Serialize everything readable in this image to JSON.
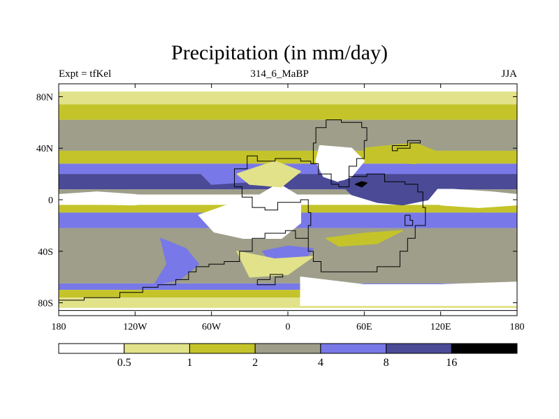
{
  "header": {
    "title": "Precipitation (in mm/day)",
    "left": "Expt = tfKel",
    "center": "314_6_MaBP",
    "right": "JJA"
  },
  "chart_data": {
    "type": "heatmap",
    "title": "Precipitation (in mm/day)",
    "subtitle_left": "Expt = tfKel",
    "subtitle_center": "314_6_MaBP",
    "subtitle_right": "JJA",
    "xlim": [
      -180,
      180
    ],
    "ylim": [
      -90,
      90
    ],
    "x_ticks": [
      {
        "value": -180,
        "label": "180"
      },
      {
        "value": -120,
        "label": "120W"
      },
      {
        "value": -60,
        "label": "60W"
      },
      {
        "value": 0,
        "label": "0"
      },
      {
        "value": 60,
        "label": "60E"
      },
      {
        "value": 120,
        "label": "120E"
      },
      {
        "value": 180,
        "label": "180"
      }
    ],
    "y_ticks": [
      {
        "value": 80,
        "label": "80N"
      },
      {
        "value": 40,
        "label": "40N"
      },
      {
        "value": 0,
        "label": "0"
      },
      {
        "value": -40,
        "label": "40S"
      },
      {
        "value": -80,
        "label": "80S"
      }
    ],
    "colorbar": {
      "levels": [
        "0.5",
        "1",
        "2",
        "4",
        "8",
        "16"
      ],
      "colors": [
        "#ffffff",
        "#e2e28a",
        "#c4c42a",
        "#9e9e8a",
        "#7878e8",
        "#4a4a96",
        "#000000"
      ]
    },
    "zonal_bands": [
      {
        "lat": [
          84,
          90
        ],
        "bin": 0
      },
      {
        "lat": [
          74,
          84
        ],
        "bin": 1
      },
      {
        "lat": [
          62,
          74
        ],
        "bin": 2
      },
      {
        "lat": [
          38,
          62
        ],
        "bin": 3
      },
      {
        "lat": [
          28,
          38
        ],
        "bin": 2
      },
      {
        "lat": [
          20,
          28
        ],
        "bin": 4
      },
      {
        "lat": [
          8,
          20
        ],
        "bin": 5
      },
      {
        "lat": [
          4,
          8
        ],
        "bin": 3
      },
      {
        "lat": [
          -4,
          4
        ],
        "bin": 0
      },
      {
        "lat": [
          -10,
          -4
        ],
        "bin": 2
      },
      {
        "lat": [
          -22,
          -10
        ],
        "bin": 4
      },
      {
        "lat": [
          -65,
          -22
        ],
        "bin": 3
      },
      {
        "lat": [
          -70,
          -65
        ],
        "bin": 4
      },
      {
        "lat": [
          -76,
          -70
        ],
        "bin": 2
      },
      {
        "lat": [
          -84,
          -76
        ],
        "bin": 1
      },
      {
        "lat": [
          -90,
          -84
        ],
        "bin": 0
      }
    ],
    "regions": [
      {
        "bin": 0,
        "polygon": [
          [
            -40,
            20
          ],
          [
            -10,
            28
          ],
          [
            -5,
            14
          ],
          [
            -25,
            2
          ],
          [
            -50,
            -5
          ],
          [
            -70,
            -12
          ],
          [
            -58,
            -25
          ],
          [
            -35,
            -30
          ],
          [
            -5,
            -30
          ],
          [
            10,
            -18
          ],
          [
            10,
            2
          ],
          [
            -10,
            14
          ],
          [
            -35,
            18
          ]
        ]
      },
      {
        "bin": 0,
        "polygon": [
          [
            25,
            42
          ],
          [
            50,
            40
          ],
          [
            60,
            30
          ],
          [
            50,
            18
          ],
          [
            40,
            14
          ],
          [
            28,
            18
          ],
          [
            22,
            30
          ]
        ]
      },
      {
        "bin": 0,
        "polygon": [
          [
            110,
            8
          ],
          [
            130,
            8
          ],
          [
            160,
            6
          ],
          [
            180,
            4
          ],
          [
            180,
            -4
          ],
          [
            150,
            -6
          ],
          [
            120,
            -4
          ]
        ]
      },
      {
        "bin": 0,
        "polygon": [
          [
            -180,
            4
          ],
          [
            -150,
            6
          ],
          [
            -120,
            4
          ],
          [
            -100,
            0
          ],
          [
            -120,
            -4
          ],
          [
            -180,
            -3
          ]
        ]
      },
      {
        "bin": 0,
        "polygon": [
          [
            10,
            -60
          ],
          [
            60,
            -66
          ],
          [
            120,
            -66
          ],
          [
            180,
            -64
          ],
          [
            180,
            -82
          ],
          [
            10,
            -82
          ]
        ]
      },
      {
        "bin": 5,
        "polygon": [
          [
            40,
            14
          ],
          [
            60,
            18
          ],
          [
            80,
            16
          ],
          [
            100,
            14
          ],
          [
            120,
            12
          ],
          [
            110,
            0
          ],
          [
            90,
            -4
          ],
          [
            70,
            -2
          ],
          [
            50,
            4
          ]
        ]
      },
      {
        "bin": 6,
        "polygon": [
          [
            53,
            12
          ],
          [
            58,
            14
          ],
          [
            62,
            13
          ],
          [
            58,
            10
          ]
        ]
      },
      {
        "bin": 4,
        "polygon": [
          [
            -70,
            22
          ],
          [
            -40,
            24
          ],
          [
            -20,
            20
          ],
          [
            -30,
            14
          ],
          [
            -60,
            12
          ]
        ]
      },
      {
        "bin": 4,
        "polygon": [
          [
            -100,
            -30
          ],
          [
            -80,
            -38
          ],
          [
            -70,
            -50
          ],
          [
            -85,
            -62
          ],
          [
            -105,
            -66
          ],
          [
            -95,
            -50
          ]
        ]
      },
      {
        "bin": 4,
        "polygon": [
          [
            -20,
            -40
          ],
          [
            0,
            -36
          ],
          [
            20,
            -38
          ],
          [
            10,
            -50
          ],
          [
            -10,
            -52
          ]
        ]
      },
      {
        "bin": 2,
        "polygon": [
          [
            60,
            40
          ],
          [
            100,
            44
          ],
          [
            120,
            36
          ],
          [
            100,
            28
          ],
          [
            70,
            30
          ]
        ]
      },
      {
        "bin": 1,
        "polygon": [
          [
            -40,
            20
          ],
          [
            -10,
            30
          ],
          [
            10,
            22
          ],
          [
            -5,
            10
          ],
          [
            -30,
            12
          ]
        ]
      },
      {
        "bin": 2,
        "polygon": [
          [
            30,
            -30
          ],
          [
            60,
            -26
          ],
          [
            90,
            -24
          ],
          [
            70,
            -34
          ],
          [
            40,
            -36
          ]
        ]
      },
      {
        "bin": 1,
        "polygon": [
          [
            -40,
            -40
          ],
          [
            -10,
            -46
          ],
          [
            20,
            -44
          ],
          [
            0,
            -58
          ],
          [
            -30,
            -60
          ]
        ]
      }
    ],
    "coastlines": [
      [
        [
          -42,
          10
        ],
        [
          -42,
          24
        ],
        [
          -32,
          34
        ],
        [
          -24,
          30
        ],
        [
          -10,
          32
        ],
        [
          10,
          30
        ],
        [
          18,
          28
        ],
        [
          24,
          20
        ],
        [
          34,
          12
        ],
        [
          40,
          10
        ],
        [
          48,
          18
        ],
        [
          62,
          20
        ],
        [
          76,
          14
        ],
        [
          92,
          12
        ],
        [
          102,
          6
        ],
        [
          106,
          -6
        ],
        [
          108,
          -20
        ],
        [
          100,
          -30
        ],
        [
          94,
          -40
        ],
        [
          88,
          -52
        ],
        [
          70,
          -56
        ],
        [
          52,
          -56
        ],
        [
          34,
          -56
        ],
        [
          26,
          -48
        ],
        [
          20,
          -40
        ],
        [
          16,
          -30
        ],
        [
          6,
          -24
        ],
        [
          -2,
          -26
        ],
        [
          -18,
          -30
        ],
        [
          -28,
          -40
        ],
        [
          -38,
          -48
        ],
        [
          -50,
          -50
        ],
        [
          -62,
          -52
        ],
        [
          -72,
          -56
        ],
        [
          -78,
          -62
        ],
        [
          -88,
          -66
        ],
        [
          -102,
          -68
        ],
        [
          -114,
          -72
        ],
        [
          -132,
          -76
        ],
        [
          -160,
          -78
        ],
        [
          -180,
          -80
        ]
      ],
      [
        [
          -42,
          10
        ],
        [
          -36,
          2
        ],
        [
          -28,
          -6
        ],
        [
          -18,
          -8
        ],
        [
          -8,
          -2
        ],
        [
          10,
          0
        ],
        [
          16,
          -10
        ],
        [
          18,
          -20
        ],
        [
          16,
          -30
        ]
      ],
      [
        [
          -180,
          -86
        ],
        [
          180,
          -86
        ]
      ],
      [
        [
          18,
          28
        ],
        [
          20,
          44
        ],
        [
          22,
          56
        ],
        [
          30,
          62
        ],
        [
          42,
          60
        ],
        [
          58,
          56
        ],
        [
          62,
          46
        ],
        [
          60,
          32
        ],
        [
          54,
          26
        ],
        [
          48,
          18
        ]
      ],
      [
        [
          82,
          42
        ],
        [
          94,
          46
        ],
        [
          104,
          44
        ],
        [
          96,
          40
        ],
        [
          86,
          38
        ],
        [
          82,
          42
        ]
      ],
      [
        [
          92,
          -12
        ],
        [
          96,
          -16
        ],
        [
          98,
          -20
        ],
        [
          94,
          -20
        ],
        [
          92,
          -12
        ]
      ],
      [
        [
          -24,
          -62
        ],
        [
          -14,
          -58
        ],
        [
          -4,
          -60
        ],
        [
          -10,
          -66
        ],
        [
          -22,
          -66
        ],
        [
          -24,
          -62
        ]
      ]
    ]
  }
}
